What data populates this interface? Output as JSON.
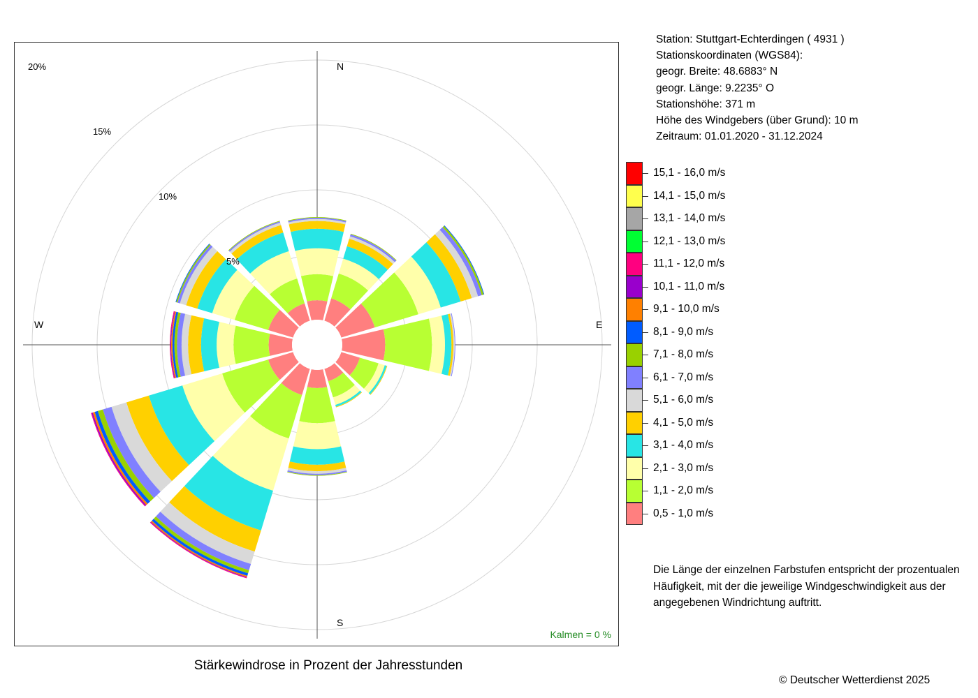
{
  "title": "Stärkewindrose in Prozent der Jahresstunden",
  "station": {
    "lines": [
      "Station:  Stuttgart-Echterdingen  ( 4931 )",
      "Stationskoordinaten (WGS84):",
      "geogr. Breite: 48.6883° N",
      "geogr. Länge:   9.2235° O",
      "Stationshöhe: 371 m",
      "Höhe des Windgebers (über Grund): 10 m",
      "Zeitraum: 01.01.2020 - 31.12.2024"
    ]
  },
  "note": "Die Länge der einzelnen Farbstufen entspricht der prozentualen Häufigkeit, mit der die jeweilige Windgeschwindigkeit aus der angegebenen Windrichtung auftritt.",
  "copyright": "© Deutscher Wetterdienst  2025",
  "chart_data": {
    "type": "windrose",
    "title": "Stärkewindrose in Prozent der Jahresstunden",
    "calm_label": "Kalmen  =  0 %",
    "calm_color": "#228B22",
    "compass": {
      "N": "N",
      "E": "E",
      "S": "S",
      "W": "W"
    },
    "rings": [
      {
        "value": 5,
        "label": "5%"
      },
      {
        "value": 10,
        "label": "10%"
      },
      {
        "value": 15,
        "label": "15%"
      },
      {
        "value": 20,
        "label": "20%"
      }
    ],
    "speed_classes": [
      {
        "label": "0,5 - 1,0 m/s",
        "color": "#FF7F7F"
      },
      {
        "label": "1,1 - 2,0 m/s",
        "color": "#B8FF33"
      },
      {
        "label": "2,1 - 3,0 m/s",
        "color": "#FFFFAA"
      },
      {
        "label": "3,1 - 4,0 m/s",
        "color": "#28E5E5"
      },
      {
        "label": "4,1 - 5,0 m/s",
        "color": "#FFD000"
      },
      {
        "label": "5,1 - 6,0 m/s",
        "color": "#D9D9D9"
      },
      {
        "label": "6,1 - 7,0 m/s",
        "color": "#8080FF"
      },
      {
        "label": "7,1 - 8,0 m/s",
        "color": "#99D100"
      },
      {
        "label": "8,1 - 9,0 m/s",
        "color": "#005CFF"
      },
      {
        "label": "9,1 - 10,0 m/s",
        "color": "#FF8000"
      },
      {
        "label": "10,1 - 11,0 m/s",
        "color": "#9900CC"
      },
      {
        "label": "11,1 - 12,0 m/s",
        "color": "#FF0080"
      },
      {
        "label": "12,1 - 13,0 m/s",
        "color": "#00FF33"
      },
      {
        "label": "13,1 - 14,0 m/s",
        "color": "#A6A6A6"
      },
      {
        "label": "14,1 - 15,0 m/s",
        "color": "#FFFF4D"
      },
      {
        "label": "15,1 - 16,0 m/s",
        "color": "#FF0000"
      }
    ],
    "sectors": [
      {
        "direction": 0,
        "values": [
          1.5,
          2.0,
          2.0,
          1.5,
          0.6,
          0.15,
          0.1,
          0.05
        ]
      },
      {
        "direction": 30,
        "values": [
          1.8,
          2.0,
          1.2,
          1.0,
          0.6,
          0.2,
          0.15,
          0.05
        ]
      },
      {
        "direction": 60,
        "values": [
          2.7,
          3.5,
          1.8,
          1.6,
          0.9,
          0.5,
          0.3,
          0.15,
          0.05
        ]
      },
      {
        "direction": 90,
        "values": [
          3.3,
          3.6,
          1.0,
          0.5,
          0.15,
          0.1,
          0.05
        ]
      },
      {
        "direction": 120,
        "values": [
          1.5,
          1.5,
          0.5,
          0.15,
          0.05
        ]
      },
      {
        "direction": 150,
        "values": [
          1.0,
          1.3,
          0.6,
          0.15,
          0.05
        ]
      },
      {
        "direction": 180,
        "values": [
          1.4,
          2.7,
          2.0,
          1.2,
          0.5,
          0.2,
          0.1,
          0.05
        ]
      },
      {
        "direction": 210,
        "values": [
          2.1,
          3.5,
          4.2,
          3.2,
          1.7,
          1.0,
          0.5,
          0.25,
          0.2,
          0.1,
          0.05,
          0.05
        ]
      },
      {
        "direction": 240,
        "values": [
          2.0,
          3.7,
          3.2,
          2.7,
          1.8,
          1.2,
          0.7,
          0.4,
          0.25,
          0.15,
          0.1,
          0.05
        ]
      },
      {
        "direction": 270,
        "values": [
          1.8,
          2.7,
          1.3,
          1.2,
          1.0,
          0.5,
          0.35,
          0.2,
          0.15,
          0.1,
          0.05,
          0.05
        ]
      },
      {
        "direction": 300,
        "values": [
          2.0,
          2.7,
          1.8,
          1.2,
          0.9,
          0.5,
          0.2,
          0.1,
          0.05
        ]
      },
      {
        "direction": 330,
        "values": [
          1.4,
          2.0,
          2.2,
          1.5,
          0.6,
          0.2,
          0.1,
          0.05
        ]
      }
    ]
  }
}
